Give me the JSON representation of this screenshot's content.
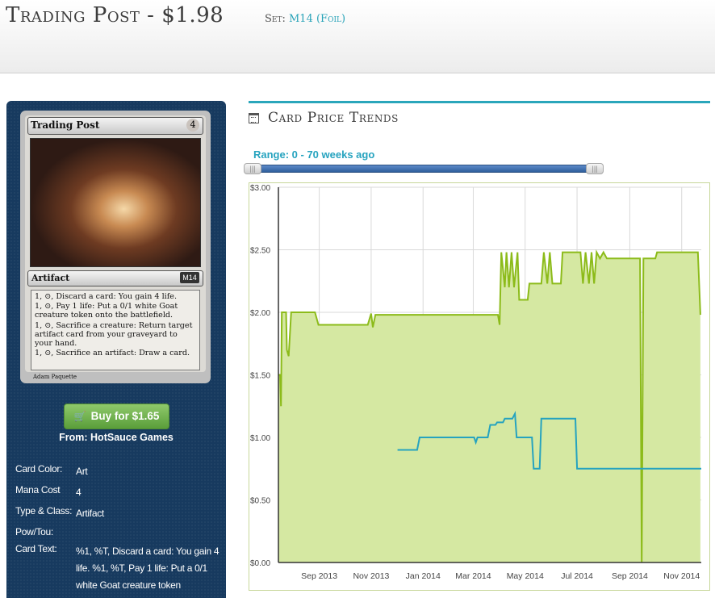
{
  "header": {
    "title": "Trading Post - $1.98",
    "set_label": "Set:",
    "set_value": "M14 (Foil)"
  },
  "card_image": {
    "name": "Trading Post",
    "cost": "4",
    "type_line": "Artifact",
    "set_symbol": "M14",
    "rules_text": [
      "1, ⊙, Discard a card: You gain 4 life.",
      "1, ⊙, Pay 1 life: Put a 0/1 white Goat creature token onto the battlefield.",
      "1, ⊙, Sacrifice a creature: Return target artifact card from your graveyard to your hand.",
      "1, ⊙, Sacrifice an artifact: Draw a card."
    ],
    "artist": "Adam Paquette"
  },
  "buy": {
    "label": "Buy for $1.65",
    "icon": "cart-icon",
    "from": "From: HotSauce Games"
  },
  "details": [
    {
      "label": "Card Color:",
      "value": "Art"
    },
    {
      "label": "Mana Cost",
      "value": "4"
    },
    {
      "label": "Type & Class:",
      "value": "Artifact"
    },
    {
      "label": "Pow/Tou:",
      "value": ""
    },
    {
      "label": "Card Text:",
      "value": "%1, %T, Discard a card: You gain 4 life. %1, %T, Pay 1 life: Put a 0/1 white Goat creature token"
    }
  ],
  "trends": {
    "title": "Card Price Trends",
    "icon": "calendar-icon",
    "range_label": "Range: 0 - 70 weeks ago",
    "range": [
      0,
      70
    ],
    "accent_color": "#2aa6bb"
  },
  "chart_data": {
    "type": "line",
    "title": "",
    "xlabel": "",
    "ylabel": "",
    "ylim": [
      0,
      3
    ],
    "y_ticks": [
      "$0.00",
      "$0.50",
      "$1.00",
      "$1.50",
      "$2.00",
      "$2.50",
      "$3.00"
    ],
    "x_ticks": [
      "Sep 2013",
      "Nov 2013",
      "Jan 2014",
      "Mar 2014",
      "May 2014",
      "Jul 2014",
      "Sep 2014",
      "Nov 2014"
    ],
    "x_range": [
      "2013-07-15",
      "2014-11-24"
    ],
    "grid": true,
    "series": [
      {
        "color": "#8cbb1a",
        "fill": "#d5e8a2",
        "area": true,
        "points": [
          [
            "2013-07-15",
            1.5
          ],
          [
            "2013-07-17",
            1.5
          ],
          [
            "2013-07-18",
            1.25
          ],
          [
            "2013-07-19",
            2.0
          ],
          [
            "2013-07-24",
            2.0
          ],
          [
            "2013-07-25",
            1.7
          ],
          [
            "2013-07-27",
            1.65
          ],
          [
            "2013-07-30",
            2.0
          ],
          [
            "2013-08-27",
            2.0
          ],
          [
            "2013-08-31",
            1.9
          ],
          [
            "2013-10-28",
            1.9
          ],
          [
            "2013-11-01",
            1.99
          ],
          [
            "2013-11-03",
            1.88
          ],
          [
            "2013-11-06",
            1.98
          ],
          [
            "2014-03-30",
            1.98
          ],
          [
            "2014-04-01",
            1.9
          ],
          [
            "2014-04-03",
            2.48
          ],
          [
            "2014-04-07",
            2.2
          ],
          [
            "2014-04-09",
            2.48
          ],
          [
            "2014-04-12",
            2.2
          ],
          [
            "2014-04-15",
            2.48
          ],
          [
            "2014-04-18",
            2.2
          ],
          [
            "2014-04-22",
            2.48
          ],
          [
            "2014-04-24",
            2.1
          ],
          [
            "2014-05-04",
            2.1
          ],
          [
            "2014-05-06",
            2.23
          ],
          [
            "2014-05-20",
            2.23
          ],
          [
            "2014-05-23",
            2.48
          ],
          [
            "2014-05-27",
            2.23
          ],
          [
            "2014-05-30",
            2.48
          ],
          [
            "2014-06-02",
            2.23
          ],
          [
            "2014-06-12",
            2.23
          ],
          [
            "2014-06-14",
            2.48
          ],
          [
            "2014-07-05",
            2.48
          ],
          [
            "2014-07-08",
            2.23
          ],
          [
            "2014-07-11",
            2.48
          ],
          [
            "2014-07-15",
            2.23
          ],
          [
            "2014-07-18",
            2.48
          ],
          [
            "2014-07-21",
            2.23
          ],
          [
            "2014-07-24",
            2.48
          ],
          [
            "2014-07-28",
            2.43
          ],
          [
            "2014-08-01",
            2.48
          ],
          [
            "2014-08-05",
            2.43
          ],
          [
            "2014-09-13",
            2.43
          ],
          [
            "2014-09-15",
            0.0
          ],
          [
            "2014-09-17",
            2.43
          ],
          [
            "2014-10-01",
            2.43
          ],
          [
            "2014-10-03",
            2.48
          ],
          [
            "2014-11-20",
            2.48
          ],
          [
            "2014-11-23",
            1.98
          ]
        ]
      },
      {
        "color": "#26a3bf",
        "area": false,
        "points": [
          [
            "2013-12-02",
            0.9
          ],
          [
            "2013-12-25",
            0.9
          ],
          [
            "2013-12-28",
            1.0
          ],
          [
            "2014-03-02",
            1.0
          ],
          [
            "2014-03-04",
            0.96
          ],
          [
            "2014-03-06",
            1.0
          ],
          [
            "2014-03-18",
            1.0
          ],
          [
            "2014-03-21",
            1.1
          ],
          [
            "2014-03-27",
            1.1
          ],
          [
            "2014-03-29",
            1.12
          ],
          [
            "2014-04-05",
            1.12
          ],
          [
            "2014-04-07",
            1.15
          ],
          [
            "2014-04-16",
            1.15
          ],
          [
            "2014-04-19",
            1.19
          ],
          [
            "2014-04-21",
            1.0
          ],
          [
            "2014-05-09",
            1.0
          ],
          [
            "2014-05-11",
            0.75
          ],
          [
            "2014-05-18",
            0.75
          ],
          [
            "2014-05-20",
            1.15
          ],
          [
            "2014-06-29",
            1.15
          ],
          [
            "2014-07-01",
            0.75
          ],
          [
            "2014-11-24",
            0.75
          ]
        ]
      }
    ]
  }
}
